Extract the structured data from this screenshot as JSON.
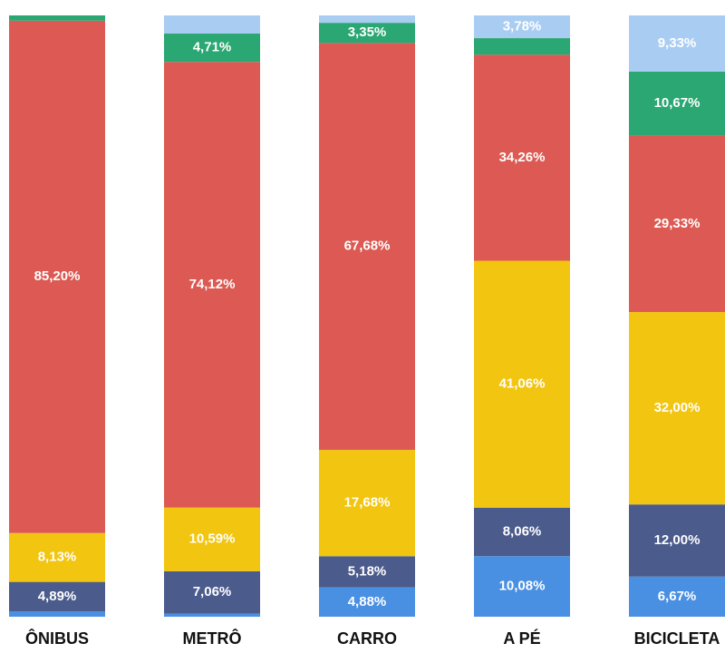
{
  "chart_data": {
    "type": "stacked_bar",
    "categories": [
      "ÔNIBUS",
      "METRÔ",
      "CARRO",
      "A PÉ",
      "BICICLETA"
    ],
    "ylim": [
      0,
      100
    ],
    "series": [
      {
        "color": "#4a90e2",
        "values": [
          0.9,
          0.5,
          4.88,
          10.08,
          6.67
        ],
        "value_labels": [
          null,
          null,
          "4,88%",
          "10,08%",
          "6,67%"
        ]
      },
      {
        "color": "#4b5b8c",
        "values": [
          4.89,
          7.06,
          5.18,
          8.06,
          12.0
        ],
        "value_labels": [
          "4,89%",
          "7,06%",
          "5,18%",
          "8,06%",
          "12,00%"
        ]
      },
      {
        "color": "#f2c511",
        "values": [
          8.13,
          10.59,
          17.68,
          41.06,
          32.0
        ],
        "value_labels": [
          "8,13%",
          "10,59%",
          "17,68%",
          "41,06%",
          "32,00%"
        ]
      },
      {
        "color": "#dc5a53",
        "values": [
          85.2,
          74.12,
          67.68,
          34.26,
          29.33
        ],
        "value_labels": [
          "85,20%",
          "74,12%",
          "67,68%",
          "34,26%",
          "29,33%"
        ]
      },
      {
        "color": "#2aa772",
        "values": [
          0.88,
          4.71,
          3.35,
          2.76,
          10.67
        ],
        "value_labels": [
          null,
          "4,71%",
          "3,35%",
          null,
          "10,67%"
        ]
      },
      {
        "color": "#a9cdf2",
        "values": [
          0,
          3.02,
          1.23,
          3.78,
          9.33
        ],
        "value_labels": [
          null,
          null,
          null,
          "3,78%",
          "9,33%"
        ]
      }
    ]
  }
}
